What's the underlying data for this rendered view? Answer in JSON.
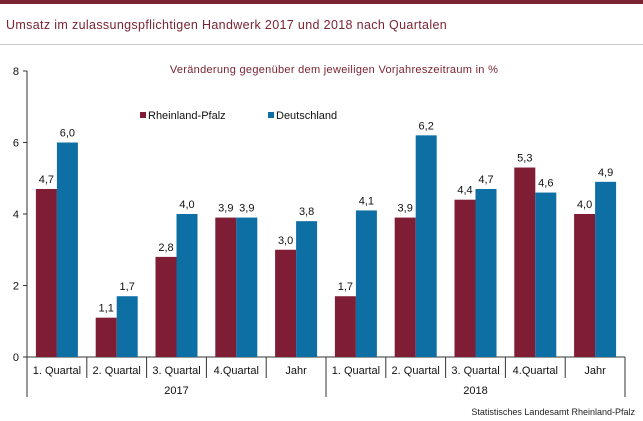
{
  "title": "Umsatz im zulassungspflichtigen Handwerk 2017 und 2018 nach Quartalen",
  "source": "Statistisches Landesamt Rheinland-Pfalz",
  "colors": {
    "accent": "#7a2433",
    "series_a": "#7f1d35",
    "series_b": "#0e6fa5"
  },
  "chart_data": {
    "type": "bar",
    "subtitle": "Veränderung gegenüber dem jeweiligen Vorjahreszeitraum in %",
    "categories": [
      "1. Quartal",
      "2. Quartal",
      "3. Quartal",
      "4.Quartal",
      "Jahr",
      "1. Quartal",
      "2. Quartal",
      "3. Quartal",
      "4.Quartal",
      "Jahr"
    ],
    "groups": [
      {
        "label": "2017",
        "from": 0,
        "to": 4
      },
      {
        "label": "2018",
        "from": 5,
        "to": 9
      }
    ],
    "series": [
      {
        "name": "Rheinland-Pfalz",
        "color": "#7f1d35",
        "values": [
          4.7,
          1.1,
          2.8,
          3.9,
          3.0,
          1.7,
          3.9,
          4.4,
          5.3,
          4.0
        ],
        "labels": [
          "4,7",
          "1,1",
          "2,8",
          "3,9",
          "3,0",
          "1,7",
          "3,9",
          "4,4",
          "5,3",
          "4,0"
        ]
      },
      {
        "name": "Deutschland",
        "color": "#0e6fa5",
        "values": [
          6.0,
          1.7,
          4.0,
          3.9,
          3.8,
          4.1,
          6.2,
          4.7,
          4.6,
          4.9
        ],
        "labels": [
          "6,0",
          "1,7",
          "4,0",
          "3,9",
          "3,8",
          "4,1",
          "6,2",
          "4,7",
          "4,6",
          "4,9"
        ]
      }
    ],
    "ylim": [
      0,
      8
    ],
    "yticks": [
      0,
      2,
      4,
      6,
      8
    ],
    "legend": "top-left",
    "grid": false
  }
}
